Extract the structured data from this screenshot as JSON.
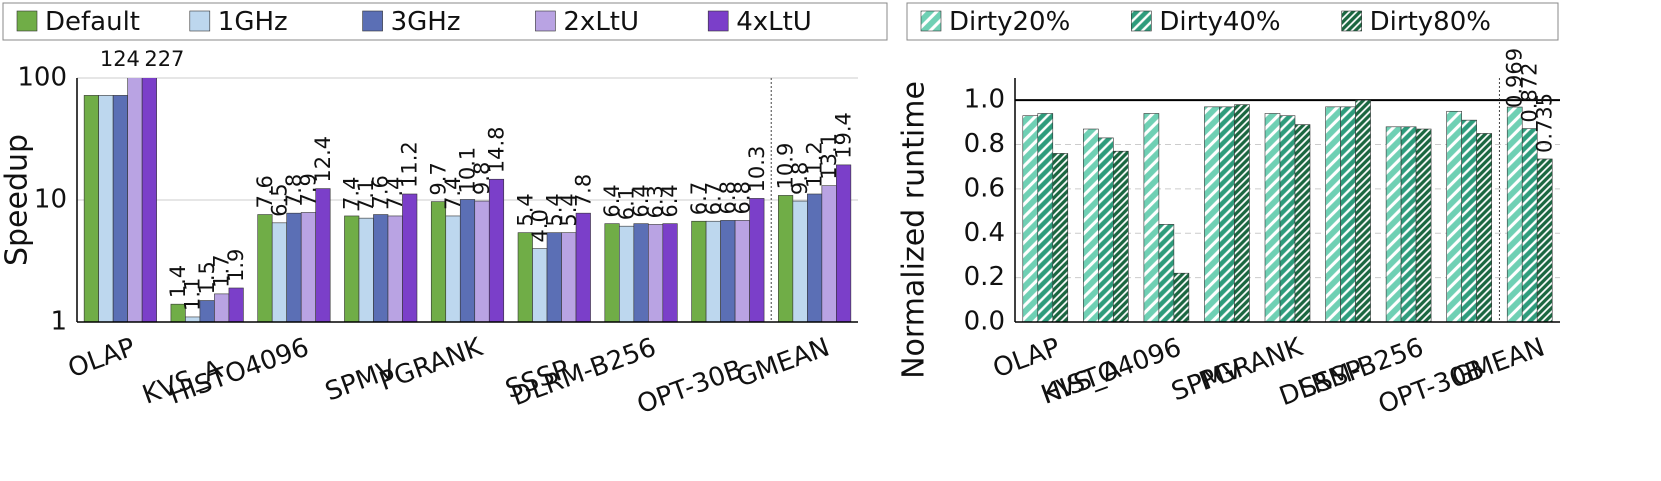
{
  "chart_data": [
    {
      "type": "bar",
      "log_scale": true,
      "ylabel": "Speedup",
      "categories": [
        "OLAP",
        "KVS_A",
        "HISTO4096",
        "SPMV",
        "PGRANK",
        "SSSP",
        "DLRM-B256",
        "OPT-30B",
        "GMEAN"
      ],
      "series": [
        {
          "name": "Default",
          "color": "#70ad47",
          "values": [
            72,
            1.4,
            7.6,
            7.4,
            9.7,
            5.4,
            6.4,
            6.7,
            10.9
          ],
          "value_labels": [
            null,
            "1.4",
            "7.6",
            "7.4",
            "9.7",
            "5.4",
            "6.4",
            "6.7",
            "10.9"
          ]
        },
        {
          "name": "1GHz",
          "color": "#bdd7ee",
          "values": [
            72,
            1.1,
            6.5,
            7.1,
            7.4,
            4.0,
            6.1,
            6.7,
            9.8
          ],
          "value_labels": [
            null,
            "1.1",
            "6.5",
            "7.1",
            "7.4",
            "4.0",
            "6.1",
            "6.7",
            "9.8"
          ]
        },
        {
          "name": "3GHz",
          "color": "#5b6fb5",
          "values": [
            72,
            1.5,
            7.8,
            7.6,
            10.1,
            5.4,
            6.4,
            6.8,
            11.2
          ],
          "value_labels": [
            null,
            "1.5",
            "7.8",
            "7.6",
            "10.1",
            "5.4",
            "6.4",
            "6.8",
            "11.2"
          ]
        },
        {
          "name": "2xLtU",
          "color": "#b9a3e3",
          "values": [
            124,
            1.7,
            7.9,
            7.4,
            9.8,
            5.4,
            6.3,
            6.8,
            13.1
          ],
          "value_labels": [
            "124",
            "1.7",
            "7.9",
            "7.4",
            "9.8",
            "5.4",
            "6.3",
            "6.8",
            "13.1"
          ]
        },
        {
          "name": "4xLtU",
          "color": "#7b3fc9",
          "values": [
            227,
            1.9,
            12.4,
            11.2,
            14.8,
            7.8,
            6.4,
            10.3,
            19.4
          ],
          "value_labels": [
            "227",
            "1.9",
            "12.4",
            "11.2",
            "14.8",
            "7.8",
            "6.4",
            "10.3",
            "19.4"
          ]
        }
      ],
      "ylim": [
        1,
        100
      ],
      "yticks": [
        1,
        10,
        100
      ],
      "grid": true,
      "hatch": false
    },
    {
      "type": "bar",
      "log_scale": false,
      "ylabel": "Normalized runtime",
      "categories": [
        "OLAP",
        "KVS_A",
        "HISTO4096",
        "SPMV",
        "PGRANK",
        "SSSP",
        "DLRM-B256",
        "OPT-30B",
        "GMEAN"
      ],
      "series": [
        {
          "name": "Dirty20%",
          "color": "#6fd0b4",
          "values": [
            0.93,
            0.87,
            0.94,
            0.97,
            0.94,
            0.97,
            0.88,
            0.95,
            0.969
          ],
          "value_labels": [
            null,
            null,
            null,
            null,
            null,
            null,
            null,
            null,
            "0.969"
          ]
        },
        {
          "name": "Dirty40%",
          "color": "#2e9c7c",
          "values": [
            0.94,
            0.83,
            0.44,
            0.97,
            0.93,
            0.97,
            0.88,
            0.91,
            0.872
          ],
          "value_labels": [
            null,
            null,
            null,
            null,
            null,
            null,
            null,
            null,
            "0.872"
          ]
        },
        {
          "name": "Dirty80%",
          "color": "#1a6640",
          "values": [
            0.76,
            0.77,
            0.22,
            0.98,
            0.89,
            1.0,
            0.87,
            0.85,
            0.735
          ],
          "value_labels": [
            null,
            null,
            null,
            null,
            null,
            null,
            null,
            null,
            "0.735"
          ]
        }
      ],
      "ylim": [
        0,
        1.1
      ],
      "yticks": [
        {
          "value": 0,
          "label": "0.0"
        },
        0.2,
        0.4,
        0.6,
        0.8,
        {
          "value": 1,
          "label": "1.0"
        }
      ],
      "grid": true,
      "hatch": true,
      "hline": 1.0
    }
  ]
}
